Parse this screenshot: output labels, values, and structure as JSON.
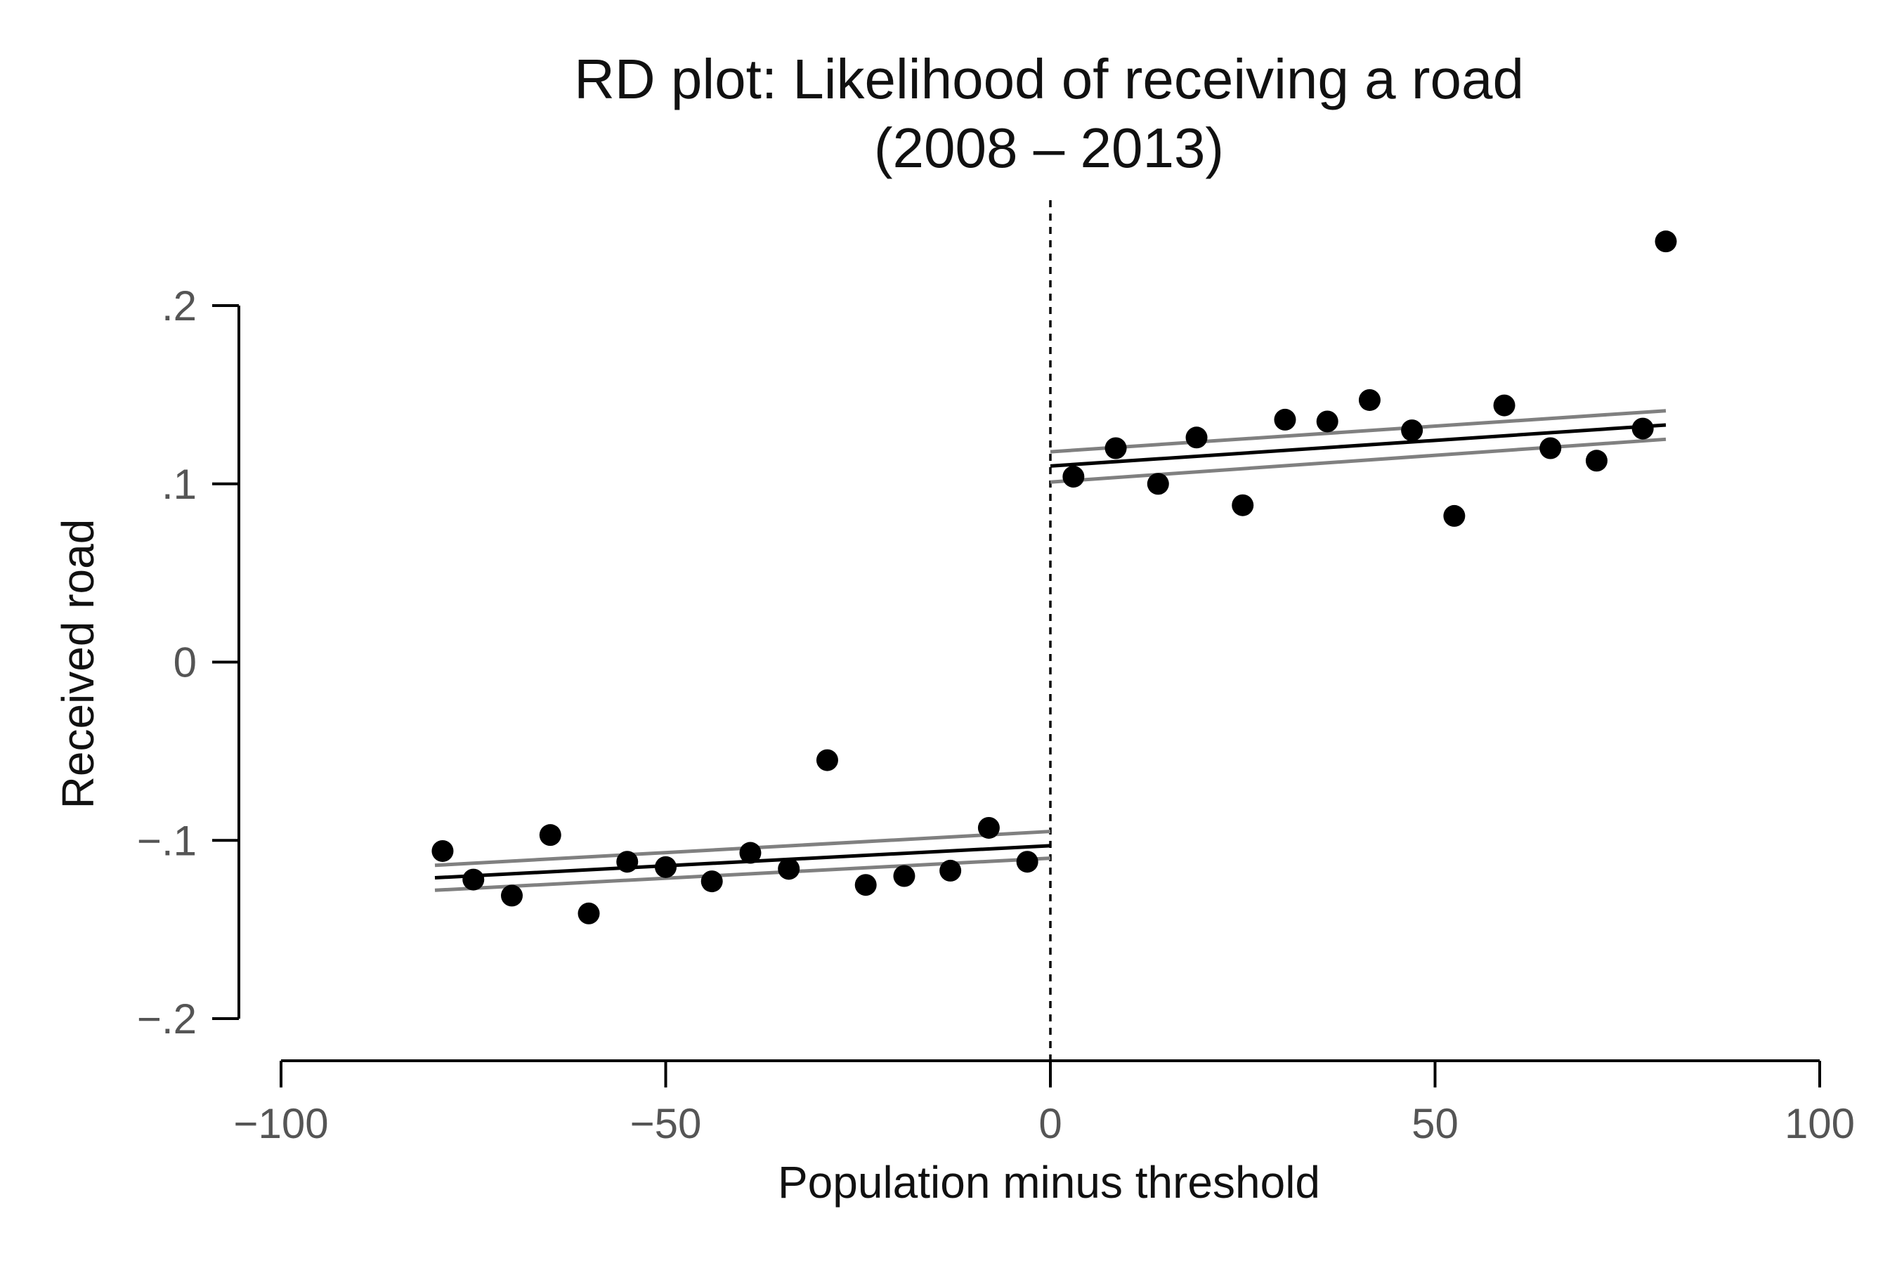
{
  "chart_data": {
    "type": "scatter",
    "title": [
      "RD plot: Likelihood of receiving a road",
      "(2008 – 2013)"
    ],
    "xlabel": "Population minus threshold",
    "ylabel": "Received road",
    "xlim": [
      -100,
      100
    ],
    "ylim": [
      -0.2,
      0.2
    ],
    "x_ticks": [
      -100,
      -50,
      0,
      50,
      100
    ],
    "x_tick_labels": [
      "−100",
      "−50",
      "0",
      "50",
      "100"
    ],
    "y_ticks": [
      -0.2,
      -0.1,
      0,
      0.1,
      0.2
    ],
    "y_tick_labels": [
      "−.2",
      "−.1",
      "0",
      ".1",
      ".2"
    ],
    "cutoff": 0,
    "grid": false,
    "legend": "none",
    "colors": {
      "points": "#000000",
      "fit": "#000000",
      "ci": "#808080",
      "axis": "#000000"
    },
    "points": {
      "x": [
        -79,
        -75,
        -70,
        -65,
        -60,
        -55,
        -50,
        -44,
        -39,
        -34,
        -29,
        -24,
        -19,
        -13,
        -8,
        -3,
        3,
        8.5,
        14,
        19,
        25,
        30.5,
        36,
        41.5,
        47,
        52.5,
        59,
        65,
        71,
        77,
        80
      ],
      "y": [
        -0.106,
        -0.122,
        -0.131,
        -0.097,
        -0.141,
        -0.112,
        -0.115,
        -0.123,
        -0.107,
        -0.116,
        -0.055,
        -0.125,
        -0.12,
        -0.117,
        -0.093,
        -0.112,
        0.104,
        0.12,
        0.1,
        0.126,
        0.088,
        0.136,
        0.135,
        0.147,
        0.13,
        0.082,
        0.144,
        0.12,
        0.113,
        0.131,
        0.236
      ]
    },
    "fits": [
      {
        "side": "left",
        "x": [
          -80,
          0
        ],
        "fit": [
          -0.121,
          -0.103
        ],
        "ci_upper": [
          -0.114,
          -0.095
        ],
        "ci_lower": [
          -0.128,
          -0.11
        ]
      },
      {
        "side": "right",
        "x": [
          0,
          80
        ],
        "fit": [
          0.11,
          0.133
        ],
        "ci_upper": [
          0.118,
          0.141
        ],
        "ci_lower": [
          0.101,
          0.125
        ]
      }
    ]
  }
}
